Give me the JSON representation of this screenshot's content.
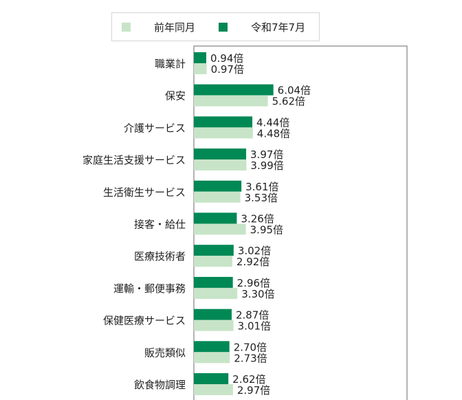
{
  "chart_data": {
    "type": "bar",
    "orientation": "horizontal",
    "categories": [
      "職業計",
      "保安",
      "介護サービス",
      "家庭生活支援サービス",
      "生活衛生サービス",
      "接客・給仕",
      "医療技術者",
      "運輸・郵便事務",
      "保健医療サービス",
      "販売類似",
      "飲食物調理"
    ],
    "series": [
      {
        "name": "令和7年7月",
        "color": "#008855",
        "values": [
          0.94,
          6.04,
          4.44,
          3.97,
          3.61,
          3.26,
          3.02,
          2.96,
          2.87,
          2.7,
          2.62
        ],
        "labels": [
          "0.94倍",
          "6.04倍",
          "4.44倍",
          "3.97倍",
          "3.61倍",
          "3.26倍",
          "3.02倍",
          "2.96倍",
          "2.87倍",
          "2.70倍",
          "2.62倍"
        ]
      },
      {
        "name": "前年同月",
        "color": "#c8e4c8",
        "values": [
          0.97,
          5.62,
          4.48,
          3.99,
          3.53,
          3.95,
          2.92,
          3.3,
          3.01,
          2.73,
          2.97
        ],
        "labels": [
          "0.97倍",
          "5.62倍",
          "4.48倍",
          "3.99倍",
          "3.53倍",
          "3.95倍",
          "2.92倍",
          "3.30倍",
          "3.01倍",
          "2.73倍",
          "2.97倍"
        ]
      }
    ],
    "legend": {
      "position": "top",
      "order": [
        "前年同月",
        "令和7年7月"
      ]
    },
    "grid": false
  }
}
